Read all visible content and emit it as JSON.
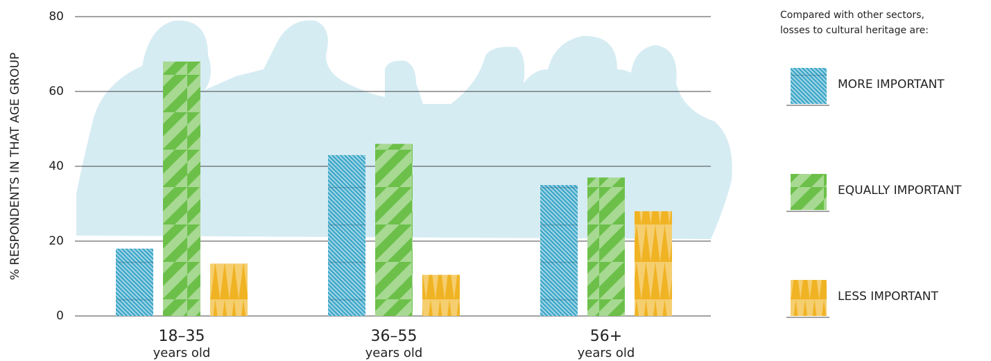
{
  "chart_data": {
    "type": "bar",
    "y_axis_label": "% RESPONDENTS IN THAT AGE GROUP",
    "categories": [
      "18–35",
      "36–55",
      "56+"
    ],
    "category_sublabels": [
      "years old",
      "years old",
      "years old"
    ],
    "legend_title": [
      "Compared with other sectors,",
      "losses to cultural heritage are:"
    ],
    "series": [
      {
        "name": "MORE IMPORTANT",
        "color": "#3aa6c8",
        "values": [
          18,
          43,
          35
        ]
      },
      {
        "name": "EQUALLY IMPORTANT",
        "color": "#6cc04a",
        "values": [
          68,
          46,
          37
        ]
      },
      {
        "name": "LESS IMPORTANT",
        "color": "#f0b323",
        "values": [
          14,
          11,
          28
        ]
      }
    ],
    "ylim": [
      0,
      80
    ],
    "yticks": [
      0,
      20,
      40,
      60,
      80
    ],
    "grid": true,
    "legend_position": "right"
  }
}
